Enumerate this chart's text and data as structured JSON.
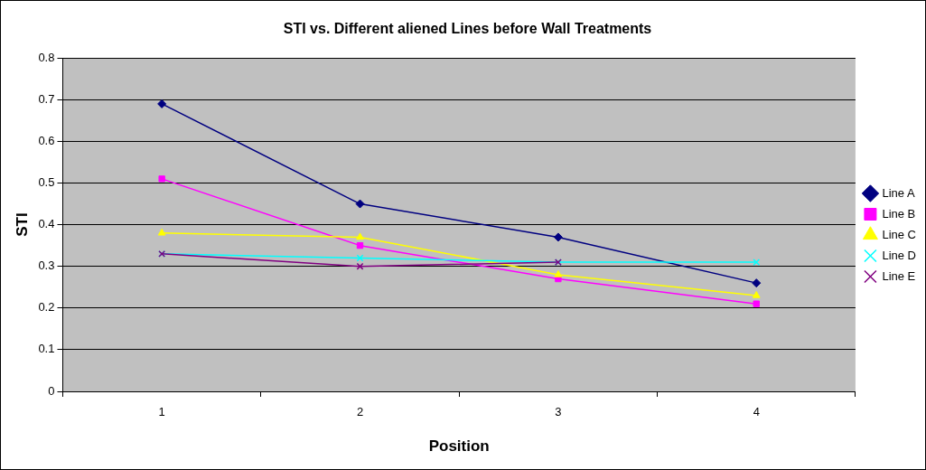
{
  "chart_data": {
    "type": "line",
    "title": "STI vs. Different aliened Lines before Wall Treatments",
    "xlabel": "Position",
    "ylabel": "STI",
    "categories": [
      "1",
      "2",
      "3",
      "4"
    ],
    "series": [
      {
        "name": "Line A",
        "color": "#000080",
        "marker": "diamond",
        "values": [
          0.69,
          0.45,
          0.37,
          0.26
        ]
      },
      {
        "name": "Line B",
        "color": "#ff00ff",
        "marker": "square",
        "values": [
          0.51,
          0.35,
          0.27,
          0.21
        ]
      },
      {
        "name": "Line C",
        "color": "#ffff00",
        "marker": "triangle",
        "values": [
          0.38,
          0.37,
          0.28,
          0.23
        ]
      },
      {
        "name": "Line D",
        "color": "#00ffff",
        "marker": "cross",
        "values": [
          0.33,
          0.32,
          0.31,
          0.31
        ]
      },
      {
        "name": "Line E",
        "color": "#800080",
        "marker": "cross",
        "values": [
          0.33,
          0.3,
          0.31,
          null
        ]
      }
    ],
    "ylim": [
      0,
      0.8
    ],
    "yticks": [
      0,
      0.1,
      0.2,
      0.3,
      0.4,
      0.5,
      0.6,
      0.7,
      0.8
    ],
    "grid": "y",
    "legend": "right",
    "line_style": "solid"
  }
}
